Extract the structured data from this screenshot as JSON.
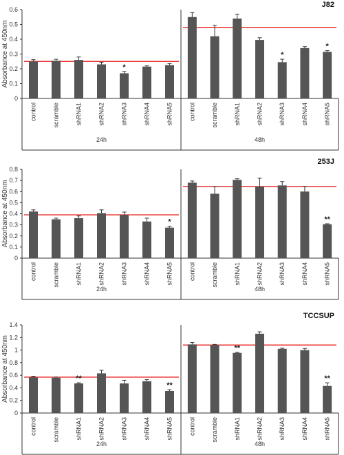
{
  "figure": {
    "background": "#ffffff"
  },
  "chart_data": [
    {
      "type": "bar",
      "title": "J82",
      "xlabel": "",
      "ylabel": "Absorbance at 450nm",
      "ylim": [
        0,
        0.6
      ],
      "yticks": [
        "0",
        "0.1",
        "0.2",
        "0.3",
        "0.4",
        "0.5",
        "0.6"
      ],
      "groups": [
        {
          "label": "24h",
          "categories": [
            "control",
            "scramble",
            "shRNA1",
            "shRNA2",
            "shRNA3",
            "shRNA4",
            "shRNA5"
          ],
          "values": [
            0.25,
            0.255,
            0.26,
            0.23,
            0.17,
            0.215,
            0.225
          ],
          "errors": [
            0.012,
            0.01,
            0.02,
            0.015,
            0.012,
            0.005,
            0.01
          ],
          "significance": [
            "",
            "",
            "",
            "",
            "*",
            "",
            ""
          ],
          "reference_line": 0.25
        },
        {
          "label": "48h",
          "categories": [
            "control",
            "scramble",
            "shRNA1",
            "shRNA2",
            "shRNA3",
            "shRNA4",
            "shRNA5"
          ],
          "values": [
            0.55,
            0.42,
            0.54,
            0.395,
            0.245,
            0.34,
            0.315
          ],
          "errors": [
            0.03,
            0.075,
            0.03,
            0.015,
            0.02,
            0.01,
            0.008
          ],
          "significance": [
            "",
            "",
            "",
            "",
            "*",
            "",
            "*"
          ],
          "reference_line": 0.48
        }
      ],
      "bar_color": "#555555",
      "reference_line_color": "#e8302e",
      "grid": false
    },
    {
      "type": "bar",
      "title": "253J",
      "xlabel": "",
      "ylabel": "Absorbance at 450nm",
      "ylim": [
        0,
        0.8
      ],
      "yticks": [
        "0",
        "0.1",
        "0.2",
        "0.3",
        "0.4",
        "0.5",
        "0.6",
        "0.7",
        "0.8"
      ],
      "groups": [
        {
          "label": "24h",
          "categories": [
            "control",
            "scramble",
            "shRNA1",
            "shRNA2",
            "shRNA3",
            "shRNA4",
            "shRNA5"
          ],
          "values": [
            0.42,
            0.35,
            0.36,
            0.405,
            0.39,
            0.33,
            0.275
          ],
          "errors": [
            0.015,
            0.01,
            0.02,
            0.03,
            0.025,
            0.03,
            0.012
          ],
          "significance": [
            "",
            "",
            "",
            "",
            "",
            "",
            "*"
          ],
          "reference_line": 0.39
        },
        {
          "label": "48h",
          "categories": [
            "control",
            "scramble",
            "shRNA1",
            "shRNA2",
            "shRNA3",
            "shRNA4",
            "shRNA5"
          ],
          "values": [
            0.68,
            0.58,
            0.705,
            0.645,
            0.655,
            0.6,
            0.305
          ],
          "errors": [
            0.015,
            0.065,
            0.01,
            0.075,
            0.035,
            0.045,
            0.005
          ],
          "significance": [
            "",
            "",
            "",
            "",
            "",
            "",
            "**"
          ],
          "reference_line": 0.645
        }
      ],
      "bar_color": "#555555",
      "reference_line_color": "#e8302e",
      "grid": false
    },
    {
      "type": "bar",
      "title": "TCCSUP",
      "xlabel": "",
      "ylabel": "Absorbance at 450nm",
      "ylim": [
        0,
        1.4
      ],
      "yticks": [
        "0",
        "0.2",
        "0.4",
        "0.6",
        "0.8",
        "1",
        "1.2",
        "1.4"
      ],
      "groups": [
        {
          "label": "24h",
          "categories": [
            "control",
            "scramble",
            "shRNA1",
            "shRNA2",
            "shRNA3",
            "shRNA4",
            "shRNA5"
          ],
          "values": [
            0.565,
            0.56,
            0.47,
            0.63,
            0.47,
            0.505,
            0.35
          ],
          "errors": [
            0.02,
            0.01,
            0.01,
            0.05,
            0.05,
            0.025,
            0.02
          ],
          "significance": [
            "",
            "",
            "**",
            "",
            "",
            "",
            "**"
          ],
          "reference_line": 0.57
        },
        {
          "label": "48h",
          "categories": [
            "control",
            "scramble",
            "shRNA1",
            "shRNA2",
            "shRNA3",
            "shRNA4",
            "shRNA5"
          ],
          "values": [
            1.09,
            1.08,
            0.955,
            1.26,
            1.02,
            1.0,
            0.43
          ],
          "errors": [
            0.03,
            0.01,
            0.01,
            0.03,
            0.01,
            0.025,
            0.05
          ],
          "significance": [
            "",
            "",
            "**",
            "",
            "",
            "",
            "**"
          ],
          "reference_line": 1.08
        }
      ],
      "bar_color": "#555555",
      "reference_line_color": "#e8302e",
      "grid": false
    }
  ]
}
